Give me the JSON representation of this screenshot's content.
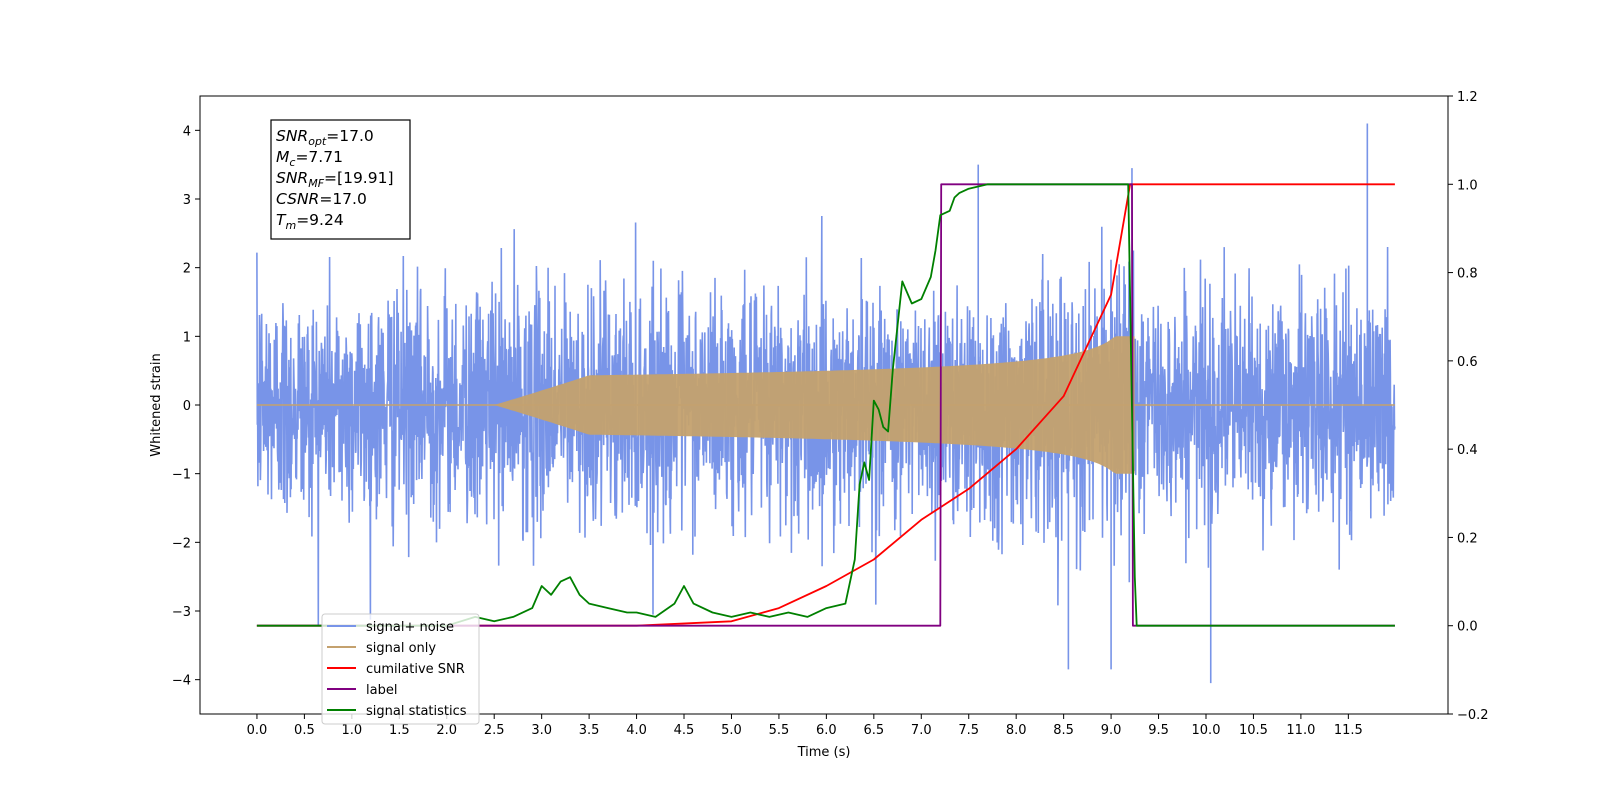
{
  "chart_data": {
    "type": "line",
    "xlabel": "Time (s)",
    "ylabel": "Whitened strain",
    "xlim": [
      -0.6,
      12.55
    ],
    "ylim": [
      -4.5,
      4.5
    ],
    "ylim_right": [
      -0.2,
      1.2
    ],
    "x_ticks": [
      0.0,
      0.5,
      1.0,
      1.5,
      2.0,
      2.5,
      3.0,
      3.5,
      4.0,
      4.5,
      5.0,
      5.5,
      6.0,
      6.5,
      7.0,
      7.5,
      8.0,
      8.5,
      9.0,
      9.5,
      10.0,
      10.5,
      11.0,
      11.5
    ],
    "y_ticks": [
      4,
      3,
      2,
      1,
      0,
      -1,
      -2,
      -3,
      -4
    ],
    "y_ticks_right": [
      1.2,
      1.0,
      0.8,
      0.6,
      0.4,
      0.2,
      0.0,
      -0.2
    ],
    "grid": false,
    "legend_position": "lower-left",
    "info_box": [
      {
        "sym": "SNR",
        "sub": "opt",
        "val": "=17.0"
      },
      {
        "sym": "M",
        "sub": "c",
        "val": "=7.71"
      },
      {
        "sym": "SNR",
        "sub": "MF",
        "val": "=[19.91]"
      },
      {
        "sym": "CSNR",
        "sub": "",
        "val": "=17.0"
      },
      {
        "sym": "T",
        "sub": "m",
        "val": "=9.24"
      }
    ],
    "series": [
      {
        "name": "signal+ noise",
        "color": "#7894e8",
        "axis": "left",
        "kind": "noise",
        "x_range": [
          0.0,
          11.99
        ],
        "typical_amplitude": 1.7,
        "peak_values": [
          4.1,
          -4.1,
          3.5,
          -3.85
        ]
      },
      {
        "name": "signal only",
        "color": "#c4a16e",
        "axis": "left",
        "kind": "chirp",
        "x_range": [
          0.0,
          11.99
        ],
        "merger_time": 9.24,
        "peak_amplitude": 1.0,
        "peak_value": 1.0
      },
      {
        "name": "cumilative SNR",
        "color": "#ff0000",
        "axis": "right",
        "x": [
          0.0,
          4.0,
          5.0,
          5.5,
          6.0,
          6.5,
          7.0,
          7.5,
          8.0,
          8.5,
          9.0,
          9.2,
          9.24,
          9.25,
          11.99
        ],
        "y": [
          0.0,
          0.0,
          0.01,
          0.04,
          0.09,
          0.15,
          0.24,
          0.31,
          0.4,
          0.52,
          0.75,
          1.0,
          1.0,
          1.0,
          1.0
        ]
      },
      {
        "name": "label",
        "color": "#800080",
        "axis": "right",
        "x": [
          0.0,
          7.2,
          7.21,
          9.22,
          9.23,
          11.99
        ],
        "y": [
          0.0,
          0.0,
          1.0,
          1.0,
          0.0,
          0.0
        ]
      },
      {
        "name": "signal statistics",
        "color": "#008000",
        "axis": "right",
        "x": [
          0.0,
          2.0,
          2.3,
          2.5,
          2.7,
          2.9,
          3.0,
          3.1,
          3.2,
          3.3,
          3.4,
          3.5,
          3.7,
          3.9,
          4.0,
          4.2,
          4.4,
          4.5,
          4.6,
          4.8,
          5.0,
          5.2,
          5.4,
          5.6,
          5.8,
          6.0,
          6.2,
          6.3,
          6.35,
          6.4,
          6.45,
          6.5,
          6.55,
          6.6,
          6.65,
          6.7,
          6.8,
          6.9,
          7.0,
          7.1,
          7.15,
          7.2,
          7.3,
          7.35,
          7.4,
          7.5,
          7.7,
          8.0,
          9.0,
          9.18,
          9.25,
          9.27,
          11.99
        ],
        "y": [
          0.0,
          0.0,
          0.02,
          0.01,
          0.02,
          0.04,
          0.09,
          0.07,
          0.1,
          0.11,
          0.07,
          0.05,
          0.04,
          0.03,
          0.03,
          0.02,
          0.05,
          0.09,
          0.05,
          0.03,
          0.02,
          0.03,
          0.02,
          0.03,
          0.02,
          0.04,
          0.05,
          0.15,
          0.32,
          0.37,
          0.33,
          0.51,
          0.49,
          0.45,
          0.44,
          0.58,
          0.78,
          0.73,
          0.74,
          0.79,
          0.85,
          0.93,
          0.94,
          0.97,
          0.98,
          0.99,
          1.0,
          1.0,
          1.0,
          1.0,
          0.11,
          0.0,
          0.0
        ]
      }
    ],
    "legend": [
      "signal+ noise",
      "signal only",
      "cumilative SNR",
      "label",
      "signal statistics"
    ]
  }
}
